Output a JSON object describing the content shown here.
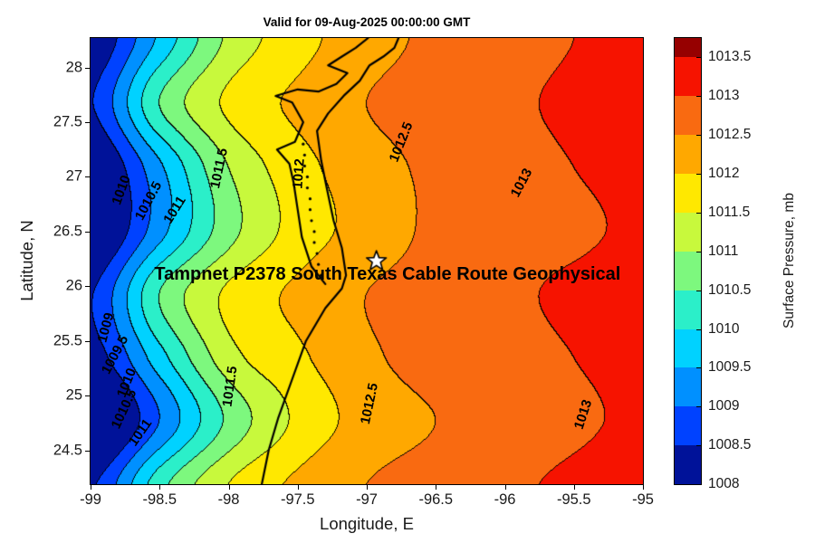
{
  "chart_data": {
    "type": "heatmap",
    "subtype": "filled-contour-pressure-map",
    "title": "Valid for 09-Aug-2025 00:00:00 GMT",
    "xlabel": "Longitude, E",
    "ylabel": "Latitude, N",
    "xlim": [
      -99,
      -95
    ],
    "ylim": [
      24.19,
      28.27
    ],
    "xticks": [
      -99,
      -98.5,
      -98,
      -97.5,
      -97,
      -96.5,
      -96,
      -95.5,
      -95
    ],
    "yticks": [
      24.5,
      25,
      25.5,
      26,
      26.5,
      27,
      27.5,
      28
    ],
    "levels": [
      1008,
      1008.5,
      1009,
      1009.5,
      1010,
      1010.5,
      1011,
      1011.5,
      1012,
      1012.5,
      1013,
      1013.5
    ],
    "band_colors": [
      "#001299",
      "#0042FF",
      "#0090FF",
      "#00D2FF",
      "#2BEFC9",
      "#7DF87E",
      "#C8F93C",
      "#FFE800",
      "#FFA800",
      "#F96A11",
      "#F61300"
    ],
    "cap_color": "#960000",
    "colorbar": {
      "label": "Surface Pressure, mb",
      "max_value": 1013.75
    },
    "grid": {
      "x": [
        -99,
        -98.5,
        -98,
        -97.5,
        -97,
        -96.5,
        -96,
        -95.5,
        -95
      ],
      "y": [
        24.19,
        24.77,
        25.36,
        25.94,
        26.52,
        27.11,
        27.69,
        28.27
      ],
      "pressure_mb": [
        [
          1008.4,
          1010.3,
          1011.5,
          1012.1,
          1012.5,
          1012.7,
          1012.9,
          1013.1,
          1013.3
        ],
        [
          1007.4,
          1009.0,
          1010.6,
          1011.6,
          1012.2,
          1012.5,
          1012.7,
          1012.9,
          1013.1
        ],
        [
          1008.2,
          1009.8,
          1011.3,
          1011.9,
          1012.4,
          1012.7,
          1012.8,
          1013.0,
          1013.2
        ],
        [
          1008.45,
          1010.5,
          1011.6,
          1012.1,
          1012.5,
          1012.7,
          1012.9,
          1013.1,
          1013.3
        ],
        [
          1007.7,
          1009.3,
          1010.8,
          1011.7,
          1012.2,
          1012.6,
          1012.8,
          1012.9,
          1013.1
        ],
        [
          1007.8,
          1009.4,
          1011.0,
          1011.8,
          1012.3,
          1012.6,
          1012.8,
          1013.0,
          1013.2
        ],
        [
          1008.45,
          1010.5,
          1011.6,
          1012.1,
          1012.5,
          1012.7,
          1012.9,
          1013.1,
          1013.3
        ],
        [
          1008.0,
          1009.6,
          1011.1,
          1011.8,
          1012.3,
          1012.6,
          1012.8,
          1013.0,
          1013.2
        ]
      ]
    },
    "contour_labels": [
      {
        "text": "1010",
        "lon": -98.78,
        "lat": 26.88,
        "rot": -70
      },
      {
        "text": "1010.5",
        "lon": -98.58,
        "lat": 26.78,
        "rot": -62
      },
      {
        "text": "1011",
        "lon": -98.39,
        "lat": 26.7,
        "rot": -58
      },
      {
        "text": "1011.5",
        "lon": -98.07,
        "lat": 27.08,
        "rot": -78
      },
      {
        "text": "1012",
        "lon": -97.49,
        "lat": 27.03,
        "rot": -86
      },
      {
        "text": "1012.5",
        "lon": -96.75,
        "lat": 27.32,
        "rot": -68
      },
      {
        "text": "1013",
        "lon": -95.88,
        "lat": 26.95,
        "rot": -62
      },
      {
        "text": "1009",
        "lon": -98.89,
        "lat": 25.62,
        "rot": -75
      },
      {
        "text": "1009.5",
        "lon": -98.82,
        "lat": 25.37,
        "rot": -62
      },
      {
        "text": "1010",
        "lon": -98.74,
        "lat": 25.12,
        "rot": -68
      },
      {
        "text": "1010.5",
        "lon": -98.76,
        "lat": 24.88,
        "rot": -65
      },
      {
        "text": "1011",
        "lon": -98.64,
        "lat": 24.66,
        "rot": -55
      },
      {
        "text": "1011.5",
        "lon": -97.99,
        "lat": 25.08,
        "rot": -82
      },
      {
        "text": "1012.5",
        "lon": -96.98,
        "lat": 24.93,
        "rot": -78
      },
      {
        "text": "1013",
        "lon": -95.43,
        "lat": 24.83,
        "rot": -72
      }
    ],
    "annotation": {
      "text": "Tampnet P2378 South Texas Cable Route Geophysical",
      "lon": -96.85,
      "lat": 26.11
    },
    "marker": {
      "type": "star",
      "lon": -96.93,
      "lat": 26.23
    },
    "coastline": {
      "main": [
        [
          -97.76,
          24.19
        ],
        [
          -97.71,
          24.5
        ],
        [
          -97.64,
          24.8
        ],
        [
          -97.54,
          25.15
        ],
        [
          -97.44,
          25.5
        ],
        [
          -97.3,
          25.8
        ],
        [
          -97.18,
          25.98
        ],
        [
          -97.15,
          26.1
        ],
        [
          -97.18,
          26.35
        ],
        [
          -97.24,
          26.6
        ],
        [
          -97.29,
          26.9
        ],
        [
          -97.33,
          27.15
        ],
        [
          -97.36,
          27.42
        ],
        [
          -97.28,
          27.58
        ],
        [
          -97.16,
          27.75
        ],
        [
          -97.05,
          27.88
        ],
        [
          -96.98,
          28.02
        ],
        [
          -96.88,
          28.1
        ],
        [
          -96.8,
          28.18
        ],
        [
          -96.77,
          28.27
        ]
      ],
      "lagoon": [
        [
          -97.3,
          26.02
        ],
        [
          -97.4,
          26.18
        ],
        [
          -97.47,
          26.45
        ],
        [
          -97.5,
          26.7
        ],
        [
          -97.53,
          26.95
        ],
        [
          -97.56,
          27.12
        ],
        [
          -97.65,
          27.25
        ],
        [
          -97.52,
          27.32
        ],
        [
          -97.46,
          27.5
        ],
        [
          -97.54,
          27.68
        ],
        [
          -97.66,
          27.74
        ],
        [
          -97.5,
          27.8
        ],
        [
          -97.35,
          27.78
        ],
        [
          -97.22,
          27.85
        ],
        [
          -97.14,
          27.95
        ],
        [
          -97.28,
          28.02
        ],
        [
          -97.18,
          28.1
        ],
        [
          -97.08,
          28.18
        ],
        [
          -96.99,
          28.27
        ]
      ],
      "dots": [
        [
          -97.33,
          26.1
        ],
        [
          -97.35,
          26.2
        ],
        [
          -97.36,
          26.3
        ],
        [
          -97.38,
          26.4
        ],
        [
          -97.38,
          26.5
        ],
        [
          -97.4,
          26.6
        ],
        [
          -97.41,
          26.7
        ],
        [
          -97.41,
          26.8
        ],
        [
          -97.43,
          26.9
        ],
        [
          -97.43,
          27.0
        ],
        [
          -97.45,
          27.1
        ],
        [
          -97.45,
          27.2
        ],
        [
          -97.46,
          27.3
        ]
      ]
    }
  }
}
